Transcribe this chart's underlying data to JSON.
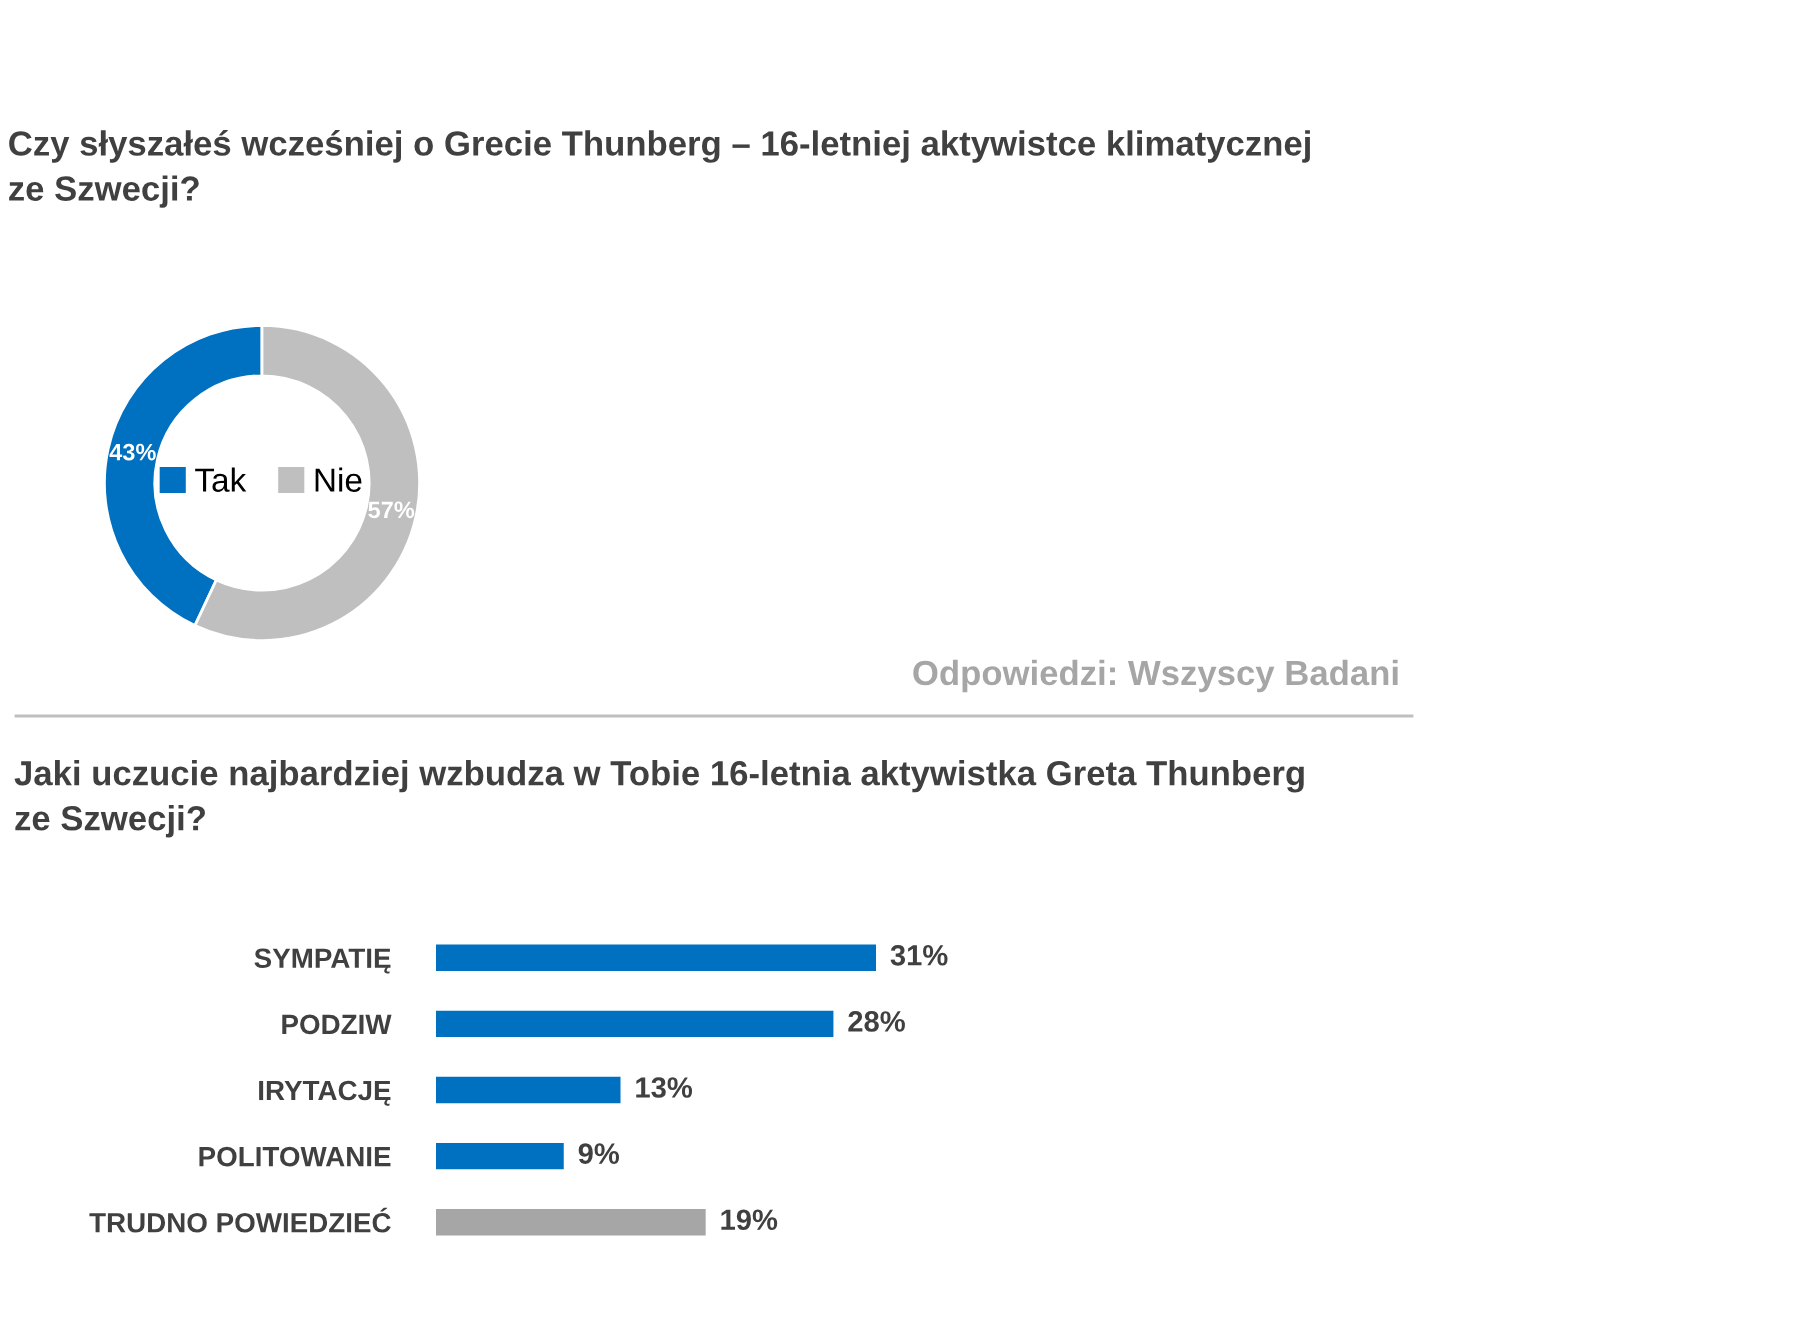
{
  "chart_data": [
    {
      "type": "donut",
      "title": "Czy słyszałeś wcześniej o Grecie Thunberg – 16-letniej aktywistce klimatycznej ze Szwecji?",
      "categories": [
        "Tak",
        "Nie"
      ],
      "values": [
        43,
        57
      ],
      "colors": [
        "#0070c0",
        "#bfbfbf"
      ],
      "value_labels": [
        "43%",
        "57%"
      ],
      "legend": "center",
      "annotations": [
        "Odpowiedzi: Wszyscy Badani"
      ]
    },
    {
      "type": "bar",
      "orientation": "horizontal",
      "title": "Jaki uczucie najbardziej wzbudza w Tobie 16-letnia aktywistka Greta Thunberg ze Szwecji?",
      "categories": [
        "SYMPATIĘ",
        "PODZIW",
        "IRYTACJĘ",
        "POLITOWANIE",
        "TRUDNO POWIEDZIEĆ"
      ],
      "values": [
        31,
        28,
        13,
        9,
        19
      ],
      "colors": [
        "#0070c0",
        "#0070c0",
        "#0070c0",
        "#0070c0",
        "#a6a6a6"
      ],
      "value_labels": [
        "31%",
        "28%",
        "13%",
        "9%",
        "19%"
      ]
    }
  ]
}
